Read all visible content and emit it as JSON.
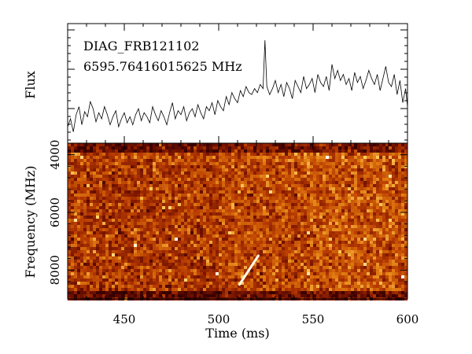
{
  "chart_data": [
    {
      "type": "line",
      "panel": "flux-timeseries",
      "title": "",
      "annotations": [
        "DIAG_FRB121102",
        "6595.76416015625 MHz"
      ],
      "xlabel": "",
      "ylabel": "Flux",
      "xlim": [
        420,
        600
      ],
      "grid": false,
      "series": [
        {
          "values_description": "",
          "x": [
            420,
            421.5,
            423,
            424.5,
            426,
            427.5,
            429,
            430.5,
            432,
            433.5,
            435,
            436.5,
            438,
            439.5,
            441,
            442.5,
            444,
            445.5,
            447,
            448.5,
            450,
            451.5,
            453,
            454.5,
            456,
            457.5,
            459,
            460.5,
            462,
            463.5,
            465,
            466.5,
            468,
            469.5,
            471,
            472.5,
            474,
            475.5,
            477,
            478.5,
            480,
            481.5,
            483,
            484.5,
            486,
            487.5,
            489,
            490.5,
            492,
            493.5,
            495,
            496.5,
            498,
            499.5,
            501,
            502.5,
            504,
            505.5,
            507,
            508.5,
            510,
            511.5,
            513,
            514.5,
            516,
            517.5,
            519,
            520.5,
            522,
            523.5,
            524.5,
            525.5,
            527,
            528.5,
            530,
            531.5,
            533,
            534.5,
            536,
            537.5,
            539,
            540.5,
            542,
            543.5,
            545,
            546.5,
            548,
            549.5,
            551,
            552.5,
            554,
            555.5,
            557,
            558.5,
            560,
            561.5,
            563,
            564.5,
            566,
            567.5,
            569,
            570.5,
            572,
            573.5,
            575,
            576.5,
            578,
            579.5,
            581,
            582.5,
            584,
            585.5,
            587,
            588.5,
            590,
            591.5,
            593,
            594.5,
            596,
            597.5,
            599,
            600
          ],
          "y": [
            0.1,
            0.18,
            0.05,
            0.22,
            0.3,
            0.12,
            0.25,
            0.2,
            0.35,
            0.28,
            0.15,
            0.24,
            0.18,
            0.3,
            0.22,
            0.12,
            0.2,
            0.26,
            0.1,
            0.18,
            0.24,
            0.14,
            0.2,
            0.12,
            0.22,
            0.28,
            0.16,
            0.24,
            0.2,
            0.14,
            0.3,
            0.22,
            0.16,
            0.26,
            0.2,
            0.12,
            0.24,
            0.34,
            0.18,
            0.26,
            0.22,
            0.3,
            0.16,
            0.24,
            0.28,
            0.2,
            0.32,
            0.24,
            0.18,
            0.3,
            0.26,
            0.34,
            0.22,
            0.36,
            0.3,
            0.26,
            0.4,
            0.32,
            0.44,
            0.38,
            0.34,
            0.46,
            0.4,
            0.5,
            0.44,
            0.42,
            0.48,
            0.44,
            0.52,
            0.48,
            0.96,
            0.5,
            0.42,
            0.48,
            0.56,
            0.44,
            0.52,
            0.4,
            0.54,
            0.48,
            0.38,
            0.56,
            0.5,
            0.44,
            0.6,
            0.48,
            0.52,
            0.58,
            0.44,
            0.62,
            0.54,
            0.5,
            0.6,
            0.46,
            0.72,
            0.58,
            0.66,
            0.56,
            0.62,
            0.52,
            0.58,
            0.46,
            0.64,
            0.54,
            0.6,
            0.48,
            0.56,
            0.66,
            0.58,
            0.52,
            0.62,
            0.46,
            0.58,
            0.7,
            0.54,
            0.5,
            0.62,
            0.42,
            0.56,
            0.34,
            0.48,
            0.3
          ]
        }
      ]
    },
    {
      "type": "heatmap",
      "panel": "dynamic-spectrum",
      "title": "",
      "xlabel": "Time (ms)",
      "ylabel": "Frequency (MHz)",
      "xlim": [
        420,
        600
      ],
      "ylim": [
        3600,
        9000
      ],
      "y_inverted": true,
      "x_ticks": [
        450,
        500,
        550,
        600
      ],
      "y_ticks": [
        4000,
        6000,
        8000
      ],
      "colormap": [
        "#3a0000",
        "#7a1500",
        "#b63a00",
        "#e07a10",
        "#ffd060",
        "#ffffff"
      ],
      "features": [
        {
          "kind": "dispersed-burst",
          "time_ms_start": 511,
          "time_ms_end": 521,
          "freq_mhz_start": 8500,
          "freq_mhz_end": 7500
        }
      ]
    }
  ]
}
